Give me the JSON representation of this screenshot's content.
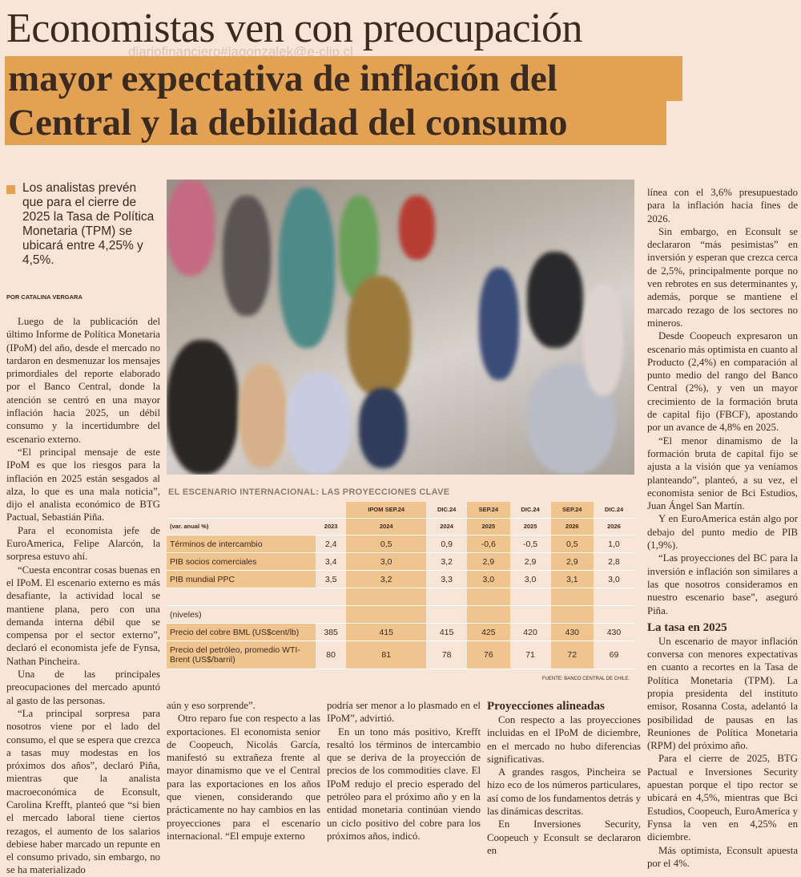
{
  "headline": {
    "line1": "Economistas ven con preocupación",
    "line2": "mayor expectativa de inflación del",
    "line3": "Central y la debilidad del consumo",
    "accent_color": "#e3a253"
  },
  "watermark": "diariofinanciero#lagonzalek@e-clip.cl",
  "summary": "Los analistas prevén que para el cierre de 2025 la Tasa de Política Monetaria (TPM) se ubicará entre 4,25% y 4,5%.",
  "byline": "POR CATALINA VERGARA",
  "table": {
    "title": "EL ESCENARIO INTERNACIONAL: LAS PROYECCIONES CLAVE",
    "header1": [
      "",
      "",
      "IPOM SEP.24",
      "DIC.24",
      "SEP.24",
      "DIC.24",
      "SEP.24",
      "DIC.24"
    ],
    "header2": [
      "(var. anual %)",
      "2023",
      "2024",
      "2024",
      "2025",
      "2025",
      "2026",
      "2026"
    ],
    "rows_var": [
      [
        "Términos de intercambio",
        "2,4",
        "0,5",
        "0,9",
        "-0,6",
        "-0,5",
        "0,5",
        "1,0"
      ],
      [
        "PIB socios comerciales",
        "3,4",
        "3,0",
        "3,2",
        "2,9",
        "2,9",
        "2,9",
        "2,8"
      ],
      [
        "PIB mundial PPC",
        "3,5",
        "3,2",
        "3,3",
        "3,0",
        "3,0",
        "3,1",
        "3,0"
      ]
    ],
    "levels_label": "(niveles)",
    "rows_levels": [
      [
        "Precio del cobre BML (US$cent/lb)",
        "385",
        "415",
        "415",
        "425",
        "420",
        "430",
        "430"
      ],
      [
        "Precio del petróleo, promedio WTI-Brent (US$/barril)",
        "80",
        "81",
        "78",
        "76",
        "71",
        "72",
        "69"
      ]
    ],
    "source": "FUENTE: BANCO CENTRAL DE CHILE."
  },
  "columns": [
    [
      {
        "t": "p",
        "text": "Luego de la publicación del último Informe de Política Monetaria (IPoM) del año, desde el mercado no tardaron en desmenuzar los mensajes primordiales del reporte elaborado por el Banco Central, donde la atención se centró en una mayor inflación hacia 2025, un débil consumo y la incertidumbre del escenario externo."
      },
      {
        "t": "p",
        "text": "“El principal mensaje de este IPoM es que los riesgos para la inflación en 2025 están sesgados al alza, lo que es una mala noticia”, dijo el analista económico de BTG Pactual, Sebastián Piña."
      },
      {
        "t": "p",
        "text": "Para el economista jefe de EuroAmerica, Felipe Alarcón, la sorpresa estuvo ahí."
      },
      {
        "t": "p",
        "text": "“Cuesta encontrar cosas buenas en el IPoM. El escenario externo es más desafiante, la actividad local se mantiene plana, pero con una demanda interna débil que se compensa por el sector externo”, declaró el economista jefe de Fynsa, Nathan Pincheira."
      },
      {
        "t": "p",
        "text": "Una de las principales preocupaciones del mercado apuntó al gasto de las personas."
      },
      {
        "t": "p",
        "text": "“La principal sorpresa para nosotros viene por el lado del consumo, el que se espera que crezca a tasas muy modestas en los próximos dos años”, declaró Piña, mientras que la analista macroeconómica de Econsult, Carolina Krefft, planteó que “si bien el mercado laboral tiene ciertos rezagos, el aumento de los salarios debiese haber marcado un repunte en el consumo privado, sin embargo, no se ha materializado"
      }
    ],
    [
      {
        "t": "c",
        "text": "aún y eso sorprende”."
      },
      {
        "t": "p",
        "text": "Otro reparo fue con respecto a las exportaciones. El economista senior de Coopeuch, Nicolás García, manifestó su extrañeza frente al mayor dinamismo que ve el Central para las exportaciones en los años que vienen, considerando que prácticamente no hay cambios en las proyecciones para el escenario internacional. “El empuje externo"
      }
    ],
    [
      {
        "t": "c",
        "text": "podría ser menor a lo plasmado en el IPoM”, advirtió."
      },
      {
        "t": "p",
        "text": "En un tono más positivo, Krefft resaltó los términos de intercambio que se deriva de la proyección de precios de los commodities clave. El IPoM redujo el precio esperado del petróleo para el próximo año y en la entidad monetaria continúan viendo un ciclo positivo del cobre para los próximos años, indicó."
      }
    ],
    [
      {
        "t": "h",
        "text": "Proyecciones alineadas"
      },
      {
        "t": "p",
        "text": "Con respecto a las proyecciones incluidas en el IPoM de diciembre, en el mercado no hubo diferencias significativas."
      },
      {
        "t": "p",
        "text": "A grandes rasgos, Pincheira se hizo eco de los números particulares, así como de los fundamentos detrás y las dinámicas descritas."
      },
      {
        "t": "p",
        "text": "En Inversiones Security, Coopeuch y Econsult se declararon en"
      }
    ],
    [
      {
        "t": "c",
        "text": "línea con el 3,6% presupuestado para la inflación hacia fines de 2026."
      },
      {
        "t": "p",
        "text": "Sin embargo, en Econsult se declararon “más pesimistas” en inversión y esperan que crezca cerca de 2,5%, principalmente porque no ven rebrotes en sus determinantes y, además, porque se mantiene el marcado rezago de los sectores no mineros."
      },
      {
        "t": "p",
        "text": "Desde Coopeuch expresaron un escenario más optimista en cuanto al Producto (2,4%) en comparación al punto medio del rango del Banco Central (2%), y ven un mayor crecimiento de la formación bruta de capital fijo (FBCF), apostando por un avance de 4,8% en 2025."
      },
      {
        "t": "p",
        "text": "“El menor dinamismo de la formación bruta de capital fijo se ajusta a la visión que ya veníamos planteando”, planteó, a su vez, el economista senior de Bci Estudios, Juan Ángel San Martín."
      },
      {
        "t": "p",
        "text": "Y en EuroAmerica están algo por debajo del punto medio de PIB (1,9%)."
      },
      {
        "t": "p",
        "text": "“Las proyecciones del BC para la inversión e inflación son similares a las que nosotros consideramos en nuestro escenario base”, aseguró Piña."
      },
      {
        "t": "h",
        "text": "La tasa en 2025"
      },
      {
        "t": "p",
        "text": "Un escenario de mayor inflación conversa con menores expectativas en cuanto a recortes en la Tasa de Política Monetaria (TPM). La propia presidenta del instituto emisor, Rosanna Costa, adelantó la posibilidad de pausas en las Reuniones de Política Monetaria (RPM) del próximo año."
      },
      {
        "t": "p",
        "text": "Para el cierre de 2025, BTG Pactual e Inversiones Security apuestan porque el tipo rector se ubicará en 4,5%, mientras que Bci Estudios, Coopeuch, EuroAmerica y Fynsa la ven en 4,25% en diciembre."
      },
      {
        "t": "p",
        "text": "Más optimista, Econsult apuesta por el 4%."
      }
    ]
  ]
}
